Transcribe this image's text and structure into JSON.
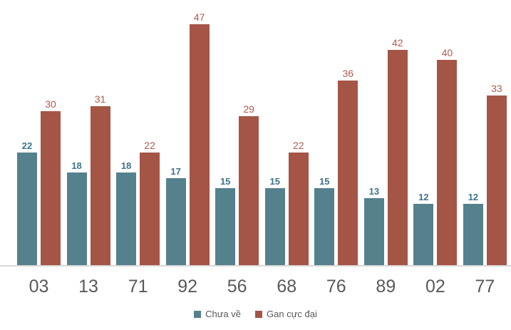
{
  "chart_data": {
    "type": "bar",
    "title": "",
    "xlabel": "",
    "ylabel": "",
    "categories": [
      "03",
      "13",
      "71",
      "92",
      "56",
      "68",
      "76",
      "89",
      "02",
      "77"
    ],
    "series": [
      {
        "name": "Chưa về",
        "values": [
          22,
          18,
          18,
          17,
          15,
          15,
          15,
          13,
          12,
          12
        ],
        "color": "#55818D",
        "label_color": "#3D7389"
      },
      {
        "name": "Gan cực đại",
        "values": [
          30,
          31,
          22,
          47,
          29,
          22,
          36,
          42,
          40,
          33
        ],
        "color": "#A55546",
        "label_color": "#B05B4D"
      }
    ],
    "ylim": [
      0,
      50
    ],
    "grid": false,
    "legend_position": "bottom",
    "value_labels": true
  },
  "axis": {
    "line_color": "#D9D9D9",
    "tick_label_color": "#595959"
  },
  "legend": {
    "text_color": "#595959"
  }
}
